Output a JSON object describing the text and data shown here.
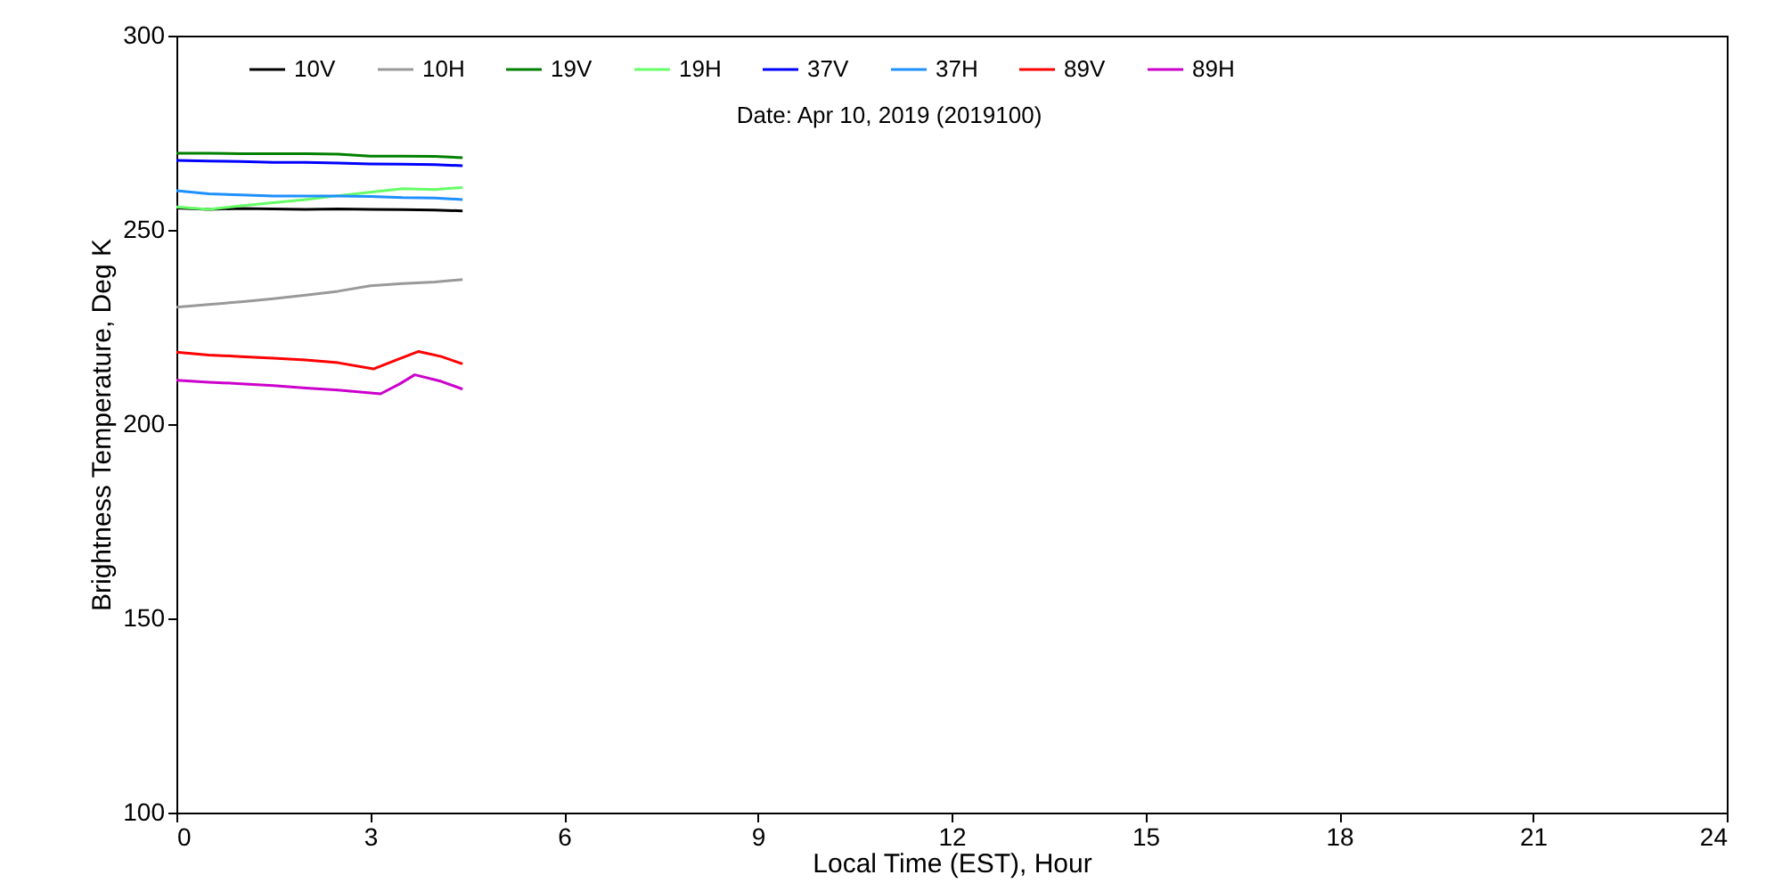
{
  "chart_data": {
    "type": "line",
    "xlabel": "Local Time (EST), Hour",
    "ylabel": "Brightness Temperature, Deg K",
    "annotations": [
      "Date: Apr 10, 2019 (2019100)"
    ],
    "xlim": [
      0,
      24
    ],
    "xticks": [
      0,
      3,
      6,
      9,
      12,
      15,
      18,
      21,
      24
    ],
    "ylim": [
      100,
      300
    ],
    "yticks": [
      100,
      150,
      200,
      250,
      300
    ],
    "grid": false,
    "legend": "top",
    "line_style": "solid",
    "marker": "none",
    "series": [
      {
        "name": "10V",
        "color": "#000000",
        "x": [
          0,
          0.5,
          1,
          1.5,
          2,
          2.5,
          3,
          3.5,
          4,
          4.43
        ],
        "values": [
          255.6,
          255.3,
          255.5,
          255.4,
          255.3,
          255.4,
          255.3,
          255.2,
          255.1,
          254.9
        ]
      },
      {
        "name": "10H",
        "color": "#999999",
        "x": [
          0,
          0.5,
          1,
          1.5,
          2,
          2.5,
          3,
          3.5,
          4,
          4.43
        ],
        "values": [
          230.1,
          230.8,
          231.5,
          232.3,
          233.2,
          234.2,
          235.6,
          236.2,
          236.6,
          237.2
        ]
      },
      {
        "name": "19V",
        "color": "#008000",
        "x": [
          0,
          0.5,
          1,
          1.5,
          2,
          2.5,
          3,
          3.5,
          4,
          4.43
        ],
        "values": [
          269.7,
          269.7,
          269.6,
          269.6,
          269.6,
          269.5,
          269.0,
          269.0,
          268.9,
          268.6
        ]
      },
      {
        "name": "19H",
        "color": "#66ff66",
        "x": [
          0,
          0.5,
          1,
          1.5,
          2,
          2.5,
          3,
          3.5,
          4,
          4.43
        ],
        "values": [
          255.9,
          255.3,
          256.2,
          257.0,
          257.8,
          258.8,
          259.7,
          260.6,
          260.4,
          260.9
        ]
      },
      {
        "name": "37V",
        "color": "#0000ff",
        "x": [
          0,
          0.5,
          1,
          1.5,
          2,
          2.5,
          3,
          3.5,
          4,
          4.43
        ],
        "values": [
          267.9,
          267.7,
          267.6,
          267.4,
          267.4,
          267.2,
          267.0,
          266.9,
          266.8,
          266.5
        ]
      },
      {
        "name": "37H",
        "color": "#1e90ff",
        "x": [
          0,
          0.5,
          1,
          1.5,
          2,
          2.5,
          3,
          3.5,
          4,
          4.43
        ],
        "values": [
          260.1,
          259.3,
          259.0,
          258.7,
          258.7,
          258.7,
          258.6,
          258.3,
          258.2,
          257.8
        ]
      },
      {
        "name": "89V",
        "color": "#ff0000",
        "x": [
          0,
          0.5,
          1,
          1.5,
          2,
          2.5,
          3.05,
          3.4,
          3.75,
          4.1,
          4.43
        ],
        "values": [
          218.5,
          217.8,
          217.4,
          217.0,
          216.5,
          215.8,
          214.2,
          216.5,
          218.7,
          217.4,
          215.5
        ]
      },
      {
        "name": "89H",
        "color": "#cc00cc",
        "x": [
          0,
          0.5,
          1,
          1.5,
          2,
          2.5,
          3.16,
          3.45,
          3.69,
          4.1,
          4.43
        ],
        "values": [
          211.3,
          210.8,
          210.4,
          209.9,
          209.3,
          208.8,
          207.8,
          210.3,
          212.7,
          211.0,
          209.0
        ]
      }
    ]
  }
}
